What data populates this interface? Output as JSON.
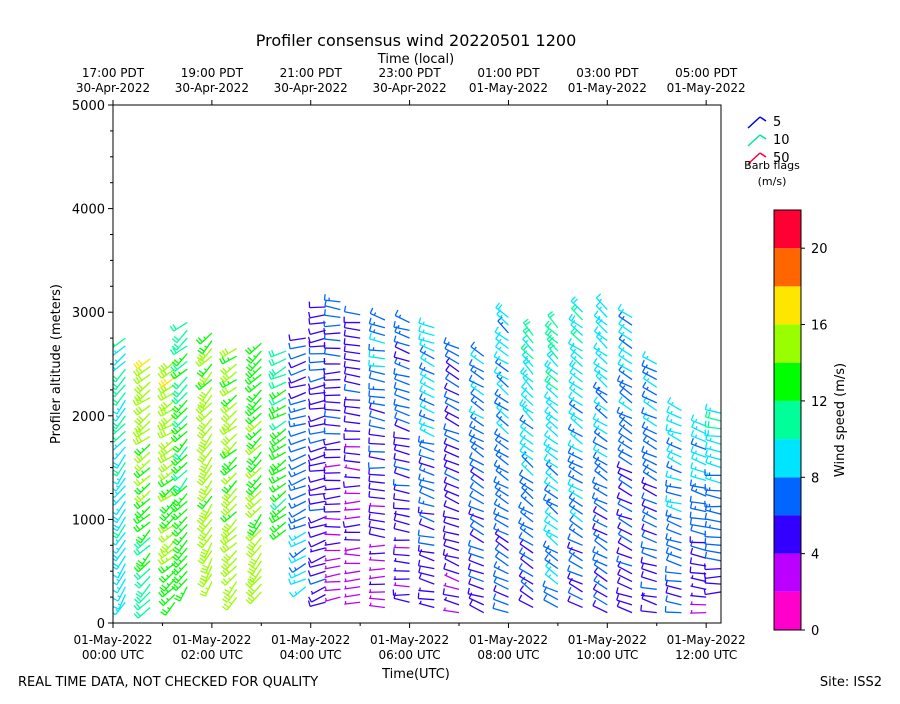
{
  "chart_data": {
    "type": "wind_barbs",
    "title": "Profiler consensus wind 20220501 1200",
    "xlabel": "Time(UTC)",
    "xlabel_top": "Time (local)",
    "ylabel": "Profiler altitude (meters)",
    "ylim": [
      0,
      5000
    ],
    "yticks": [
      0,
      1000,
      2000,
      3000,
      4000,
      5000
    ],
    "xlim_hours_utc": [
      0,
      12.3
    ],
    "xticks_bottom": [
      {
        "hour": 0,
        "line1": "01-May-2022",
        "line2": "00:00 UTC"
      },
      {
        "hour": 2,
        "line1": "01-May-2022",
        "line2": "02:00 UTC"
      },
      {
        "hour": 4,
        "line1": "01-May-2022",
        "line2": "04:00 UTC"
      },
      {
        "hour": 6,
        "line1": "01-May-2022",
        "line2": "06:00 UTC"
      },
      {
        "hour": 8,
        "line1": "01-May-2022",
        "line2": "08:00 UTC"
      },
      {
        "hour": 10,
        "line1": "01-May-2022",
        "line2": "10:00 UTC"
      },
      {
        "hour": 12,
        "line1": "01-May-2022",
        "line2": "12:00 UTC"
      }
    ],
    "xticks_top": [
      {
        "hour": 0,
        "line1": "17:00 PDT",
        "line2": "30-Apr-2022"
      },
      {
        "hour": 2,
        "line1": "19:00 PDT",
        "line2": "30-Apr-2022"
      },
      {
        "hour": 4,
        "line1": "21:00 PDT",
        "line2": "30-Apr-2022"
      },
      {
        "hour": 6,
        "line1": "23:00 PDT",
        "line2": "30-Apr-2022"
      },
      {
        "hour": 8,
        "line1": "01:00 PDT",
        "line2": "01-May-2022"
      },
      {
        "hour": 10,
        "line1": "03:00 PDT",
        "line2": "01-May-2022"
      },
      {
        "hour": 12,
        "line1": "05:00 PDT",
        "line2": "01-May-2022"
      }
    ],
    "barb_flags": {
      "title_line1": "Barb flags",
      "title_line2": "(m/s)",
      "entries": [
        "5",
        "10",
        "50"
      ]
    },
    "colorbar": {
      "label": "Wind speed (m/s)",
      "bounds": [
        0,
        22
      ],
      "ticks": [
        0,
        4,
        8,
        12,
        16,
        20
      ],
      "colors": [
        "#ff00cc",
        "#bb00ff",
        "#3300ff",
        "#0066ff",
        "#00e5ff",
        "#00ff99",
        "#00ff00",
        "#99ff00",
        "#ffe600",
        "#ff6600",
        "#ff0033"
      ]
    },
    "profiles": [
      {
        "t": 0.0,
        "base": 300,
        "top": 2200,
        "dir": 215,
        "spd_low": 9,
        "spd_high": 12
      },
      {
        "t": 0.25,
        "base": 200,
        "top": 2800,
        "dir": 210,
        "spd_low": 9,
        "spd_high": 10
      },
      {
        "t": 0.75,
        "base": 150,
        "top": 2600,
        "dir": 220,
        "spd_low": 11,
        "spd_high": 16
      },
      {
        "t": 1.25,
        "base": 200,
        "top": 2550,
        "dir": 225,
        "spd_low": 13,
        "spd_high": 16
      },
      {
        "t": 1.5,
        "base": 350,
        "top": 2950,
        "dir": 215,
        "spd_low": 13,
        "spd_high": 11
      },
      {
        "t": 2.0,
        "base": 400,
        "top": 2800,
        "dir": 210,
        "spd_low": 15,
        "spd_high": 14
      },
      {
        "t": 2.5,
        "base": 250,
        "top": 2700,
        "dir": 220,
        "spd_low": 15,
        "spd_high": 14
      },
      {
        "t": 3.0,
        "base": 300,
        "top": 2700,
        "dir": 215,
        "spd_low": 15,
        "spd_high": 13
      },
      {
        "t": 3.5,
        "base": 900,
        "top": 2650,
        "dir": 230,
        "spd_low": 13,
        "spd_high": 11
      },
      {
        "t": 3.9,
        "base": 350,
        "top": 2750,
        "dir": 240,
        "spd_low": 8,
        "spd_high": 6
      },
      {
        "t": 4.3,
        "base": 200,
        "top": 3100,
        "dir": 250,
        "spd_low": 5,
        "spd_high": 6
      },
      {
        "t": 4.6,
        "base": 250,
        "top": 3100,
        "dir": 260,
        "spd_low": 3,
        "spd_high": 7
      },
      {
        "t": 5.0,
        "base": 200,
        "top": 3000,
        "dir": 265,
        "spd_low": 3,
        "spd_high": 6
      },
      {
        "t": 5.5,
        "base": 150,
        "top": 2950,
        "dir": 270,
        "spd_low": 3,
        "spd_high": 8
      },
      {
        "t": 6.0,
        "base": 200,
        "top": 2900,
        "dir": 275,
        "spd_low": 4,
        "spd_high": 7
      },
      {
        "t": 6.5,
        "base": 150,
        "top": 2900,
        "dir": 280,
        "spd_low": 5,
        "spd_high": 9
      },
      {
        "t": 7.0,
        "base": 100,
        "top": 2700,
        "dir": 285,
        "spd_low": 4,
        "spd_high": 7
      },
      {
        "t": 7.5,
        "base": 100,
        "top": 2600,
        "dir": 290,
        "spd_low": 5,
        "spd_high": 8
      },
      {
        "t": 8.0,
        "base": 100,
        "top": 3000,
        "dir": 295,
        "spd_low": 6,
        "spd_high": 9
      },
      {
        "t": 8.5,
        "base": 150,
        "top": 2800,
        "dir": 300,
        "spd_low": 6,
        "spd_high": 10
      },
      {
        "t": 9.0,
        "base": 150,
        "top": 2900,
        "dir": 300,
        "spd_low": 7,
        "spd_high": 11
      },
      {
        "t": 9.5,
        "base": 150,
        "top": 3000,
        "dir": 295,
        "spd_low": 6,
        "spd_high": 10
      },
      {
        "t": 10.0,
        "base": 100,
        "top": 3050,
        "dir": 295,
        "spd_low": 6,
        "spd_high": 9
      },
      {
        "t": 10.5,
        "base": 100,
        "top": 2950,
        "dir": 290,
        "spd_low": 5,
        "spd_high": 8
      },
      {
        "t": 11.0,
        "base": 100,
        "top": 2500,
        "dir": 285,
        "spd_low": 5,
        "spd_high": 8
      },
      {
        "t": 11.5,
        "base": 100,
        "top": 2100,
        "dir": 280,
        "spd_low": 6,
        "spd_high": 9
      },
      {
        "t": 12.0,
        "base": 100,
        "top": 1900,
        "dir": 275,
        "spd_low": 4,
        "spd_high": 9
      },
      {
        "t": 12.3,
        "base": 300,
        "top": 2050,
        "dir": 270,
        "spd_low": 5,
        "spd_high": 10
      }
    ]
  },
  "footer": {
    "left": "REAL TIME DATA, NOT CHECKED FOR QUALITY",
    "right": "Site: ISS2"
  }
}
